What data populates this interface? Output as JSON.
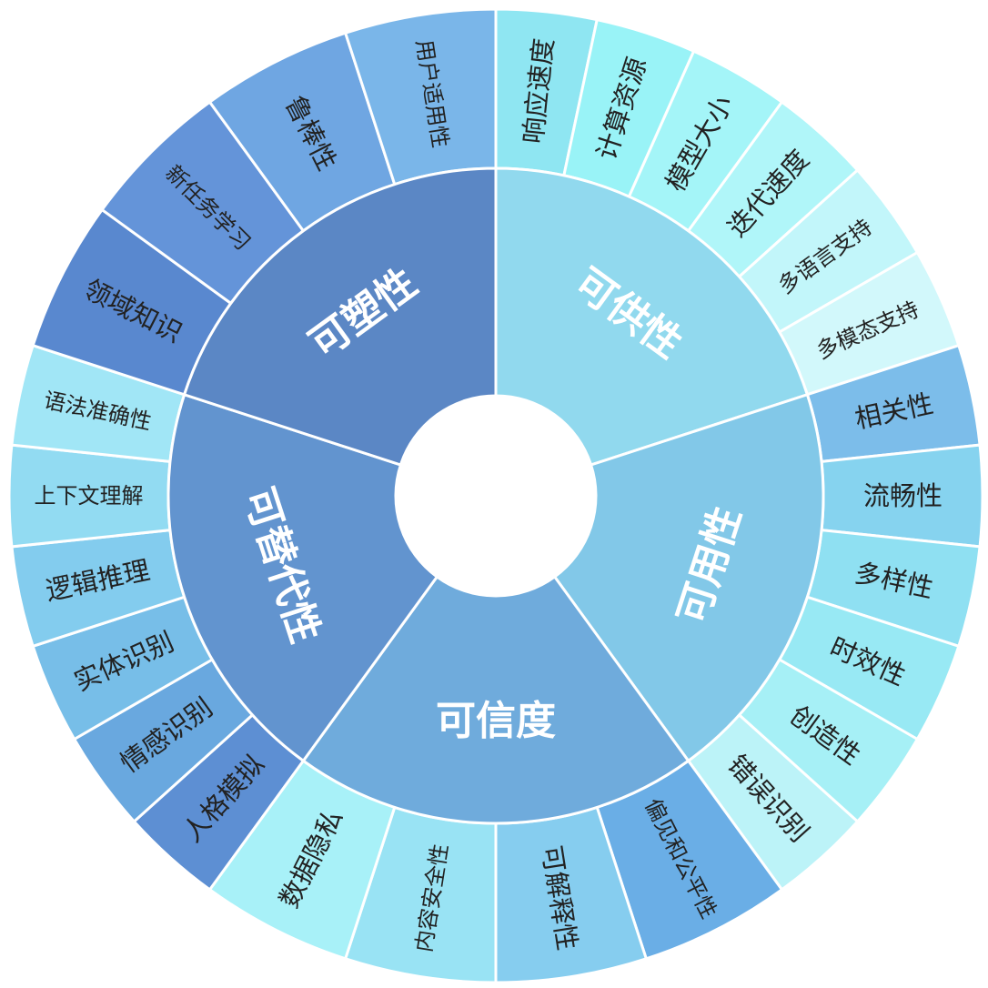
{
  "diagram": {
    "groups": [
      {
        "label": "可供性",
        "color": "#91d9ee",
        "items": [
          {
            "label": "响应速度",
            "color": "#8fe6f2"
          },
          {
            "label": "计算资源",
            "color": "#99f3f7"
          },
          {
            "label": "模型大小",
            "color": "#a4f5f8"
          },
          {
            "label": "迭代速度",
            "color": "#b0f6f9"
          },
          {
            "label": "多语言支持",
            "color": "#c2f6fa"
          },
          {
            "label": "多模态支持",
            "color": "#d2f8fb"
          }
        ]
      },
      {
        "label": "可用性",
        "color": "#82c8e8",
        "items": [
          {
            "label": "相关性",
            "color": "#7cbdea"
          },
          {
            "label": "流畅性",
            "color": "#86d3ef"
          },
          {
            "label": "多样性",
            "color": "#8fe0f2"
          },
          {
            "label": "时效性",
            "color": "#98e9f4"
          },
          {
            "label": "创造性",
            "color": "#a6f0f6"
          },
          {
            "label": "错误识别",
            "color": "#bcf3f8"
          }
        ]
      },
      {
        "label": "可信度",
        "color": "#6fabdc",
        "items": [
          {
            "label": "偏见和公平性",
            "color": "#6aaee6"
          },
          {
            "label": "可解释性",
            "color": "#86cdef"
          },
          {
            "label": "内容安全性",
            "color": "#99e3f4"
          },
          {
            "label": "数据隐私",
            "color": "#a8f1f8"
          }
        ]
      },
      {
        "label": "可替代性",
        "color": "#6294cf",
        "items": [
          {
            "label": "人格模拟",
            "color": "#5d8fd3"
          },
          {
            "label": "情感识别",
            "color": "#69a8df"
          },
          {
            "label": "实体识别",
            "color": "#77bee8"
          },
          {
            "label": "逻辑推理",
            "color": "#83ccee"
          },
          {
            "label": "上下文理解",
            "color": "#92dbf2"
          },
          {
            "label": "语法准确性",
            "color": "#a1e6f6"
          }
        ]
      },
      {
        "label": "可塑性",
        "color": "#5b87c5",
        "items": [
          {
            "label": "领域知识",
            "color": "#5988cf"
          },
          {
            "label": "新任务学习",
            "color": "#6494d9"
          },
          {
            "label": "鲁棒性",
            "color": "#6fa6e2"
          },
          {
            "label": "用户适用性",
            "color": "#7ab6e9"
          }
        ]
      }
    ]
  }
}
